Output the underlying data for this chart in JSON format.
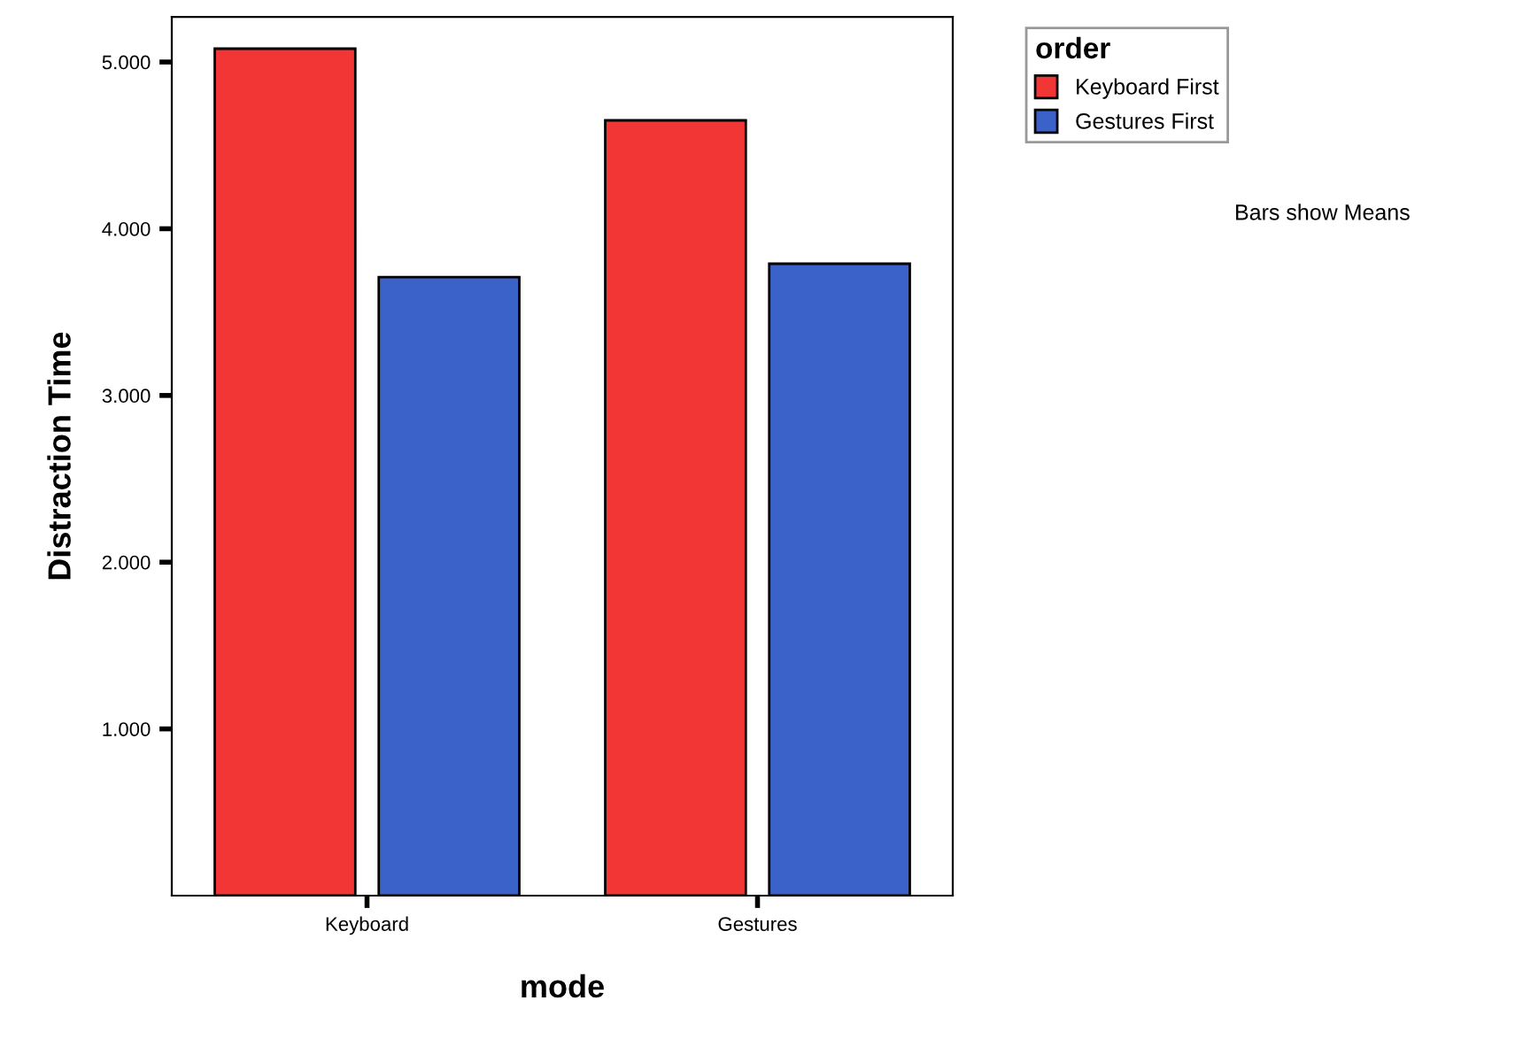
{
  "chart_data": {
    "type": "bar",
    "xlabel": "mode",
    "ylabel": "Distraction Time",
    "legend_title": "order",
    "categories": [
      "Keyboard",
      "Gestures"
    ],
    "series": [
      {
        "name": "Keyboard First",
        "color": "#f23535",
        "values": [
          5.08,
          4.65
        ]
      },
      {
        "name": "Gestures First",
        "color": "#3a62c8",
        "values": [
          3.71,
          3.79
        ]
      }
    ],
    "ylim": [
      0,
      5.27
    ],
    "yticks": [
      {
        "value": 1,
        "label": "1.000"
      },
      {
        "value": 2,
        "label": "2.000"
      },
      {
        "value": 3,
        "label": "3.000"
      },
      {
        "value": 4,
        "label": "4.000"
      },
      {
        "value": 5,
        "label": "5.000"
      }
    ],
    "grid": false,
    "legend": "top right",
    "annotations": [
      "Bars show Means"
    ]
  }
}
